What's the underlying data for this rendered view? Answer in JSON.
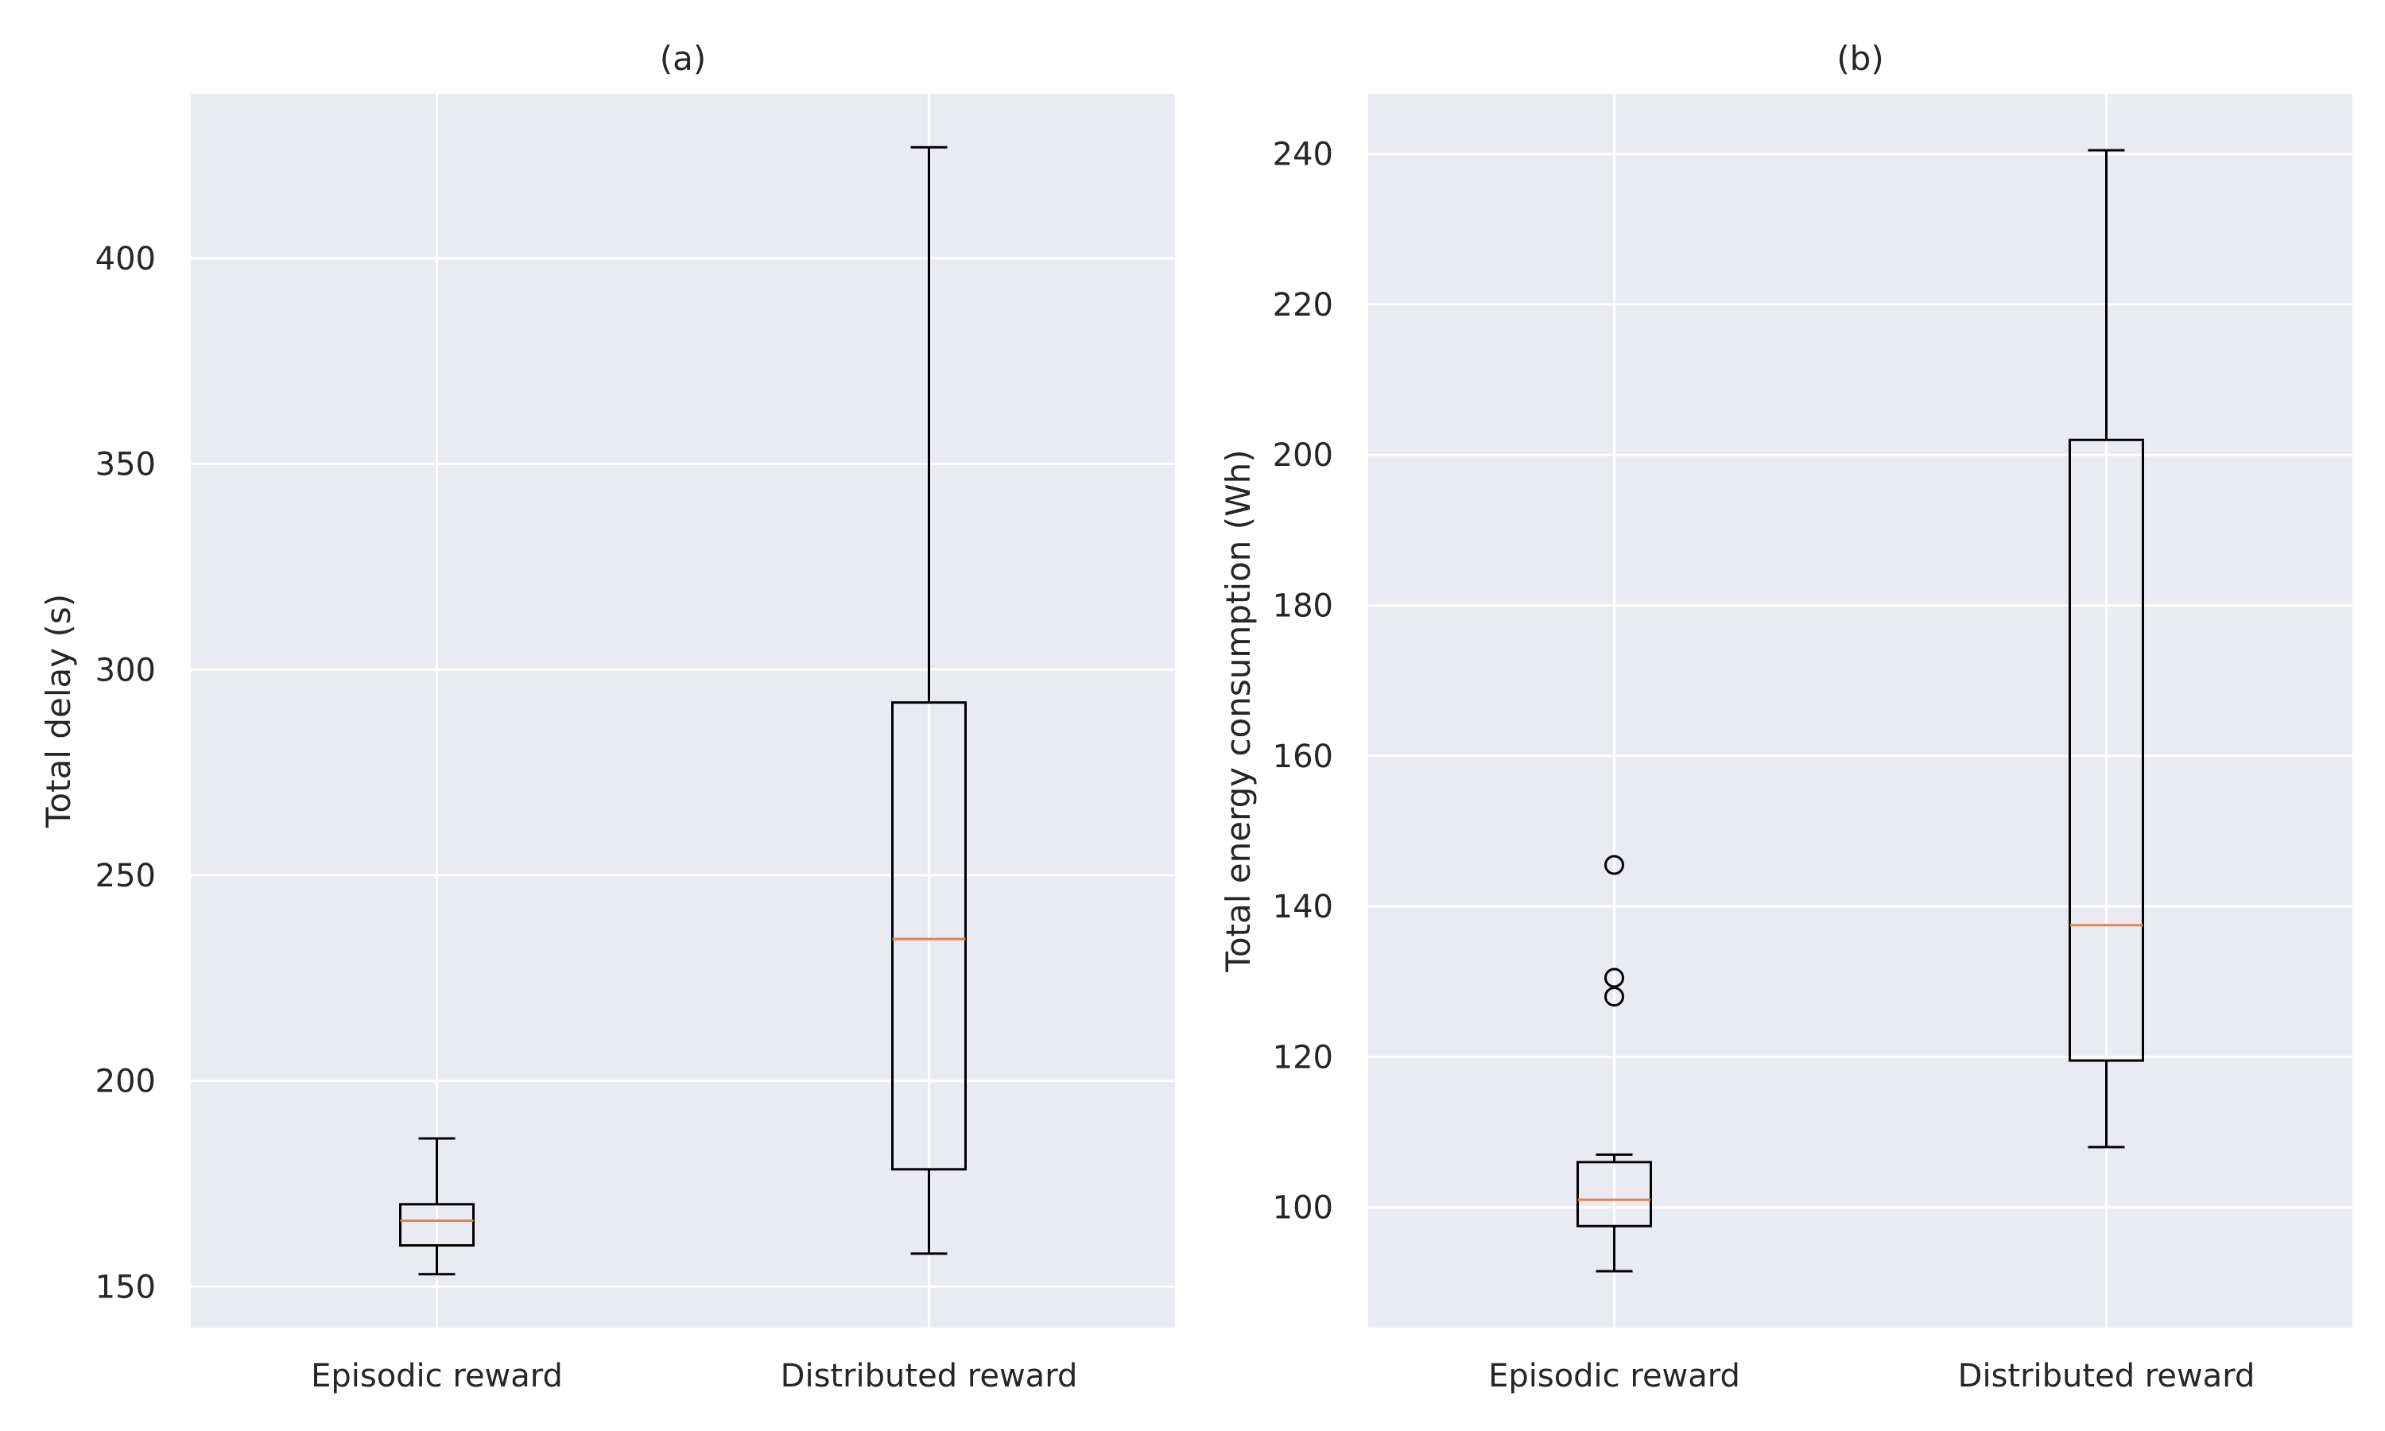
{
  "chart_data": [
    {
      "type": "box",
      "title": "(a)",
      "xlabel": "",
      "ylabel": "Total delay (s)",
      "categories": [
        "Episodic reward",
        "Distributed reward"
      ],
      "ylim": [
        140,
        440
      ],
      "yticks": [
        150,
        200,
        250,
        300,
        350,
        400
      ],
      "grid": true,
      "boxes": [
        {
          "name": "Episodic reward",
          "whisker_low": 153,
          "q1": 160,
          "median": 166,
          "q3": 170,
          "whisker_high": 186,
          "outliers": []
        },
        {
          "name": "Distributed reward",
          "whisker_low": 158,
          "q1": 178.5,
          "median": 234.5,
          "q3": 292,
          "whisker_high": 427,
          "outliers": []
        }
      ]
    },
    {
      "type": "box",
      "title": "(b)",
      "xlabel": "",
      "ylabel": "Total energy consumption (Wh)",
      "categories": [
        "Episodic reward",
        "Distributed reward"
      ],
      "ylim": [
        84,
        248
      ],
      "yticks": [
        100,
        120,
        140,
        160,
        180,
        200,
        220,
        240
      ],
      "grid": true,
      "boxes": [
        {
          "name": "Episodic reward",
          "whisker_low": 91.5,
          "q1": 97.5,
          "median": 101,
          "q3": 106,
          "whisker_high": 107,
          "outliers": [
            128,
            130.5,
            145.5
          ]
        },
        {
          "name": "Distributed reward",
          "whisker_low": 108,
          "q1": 119.5,
          "median": 137.5,
          "q3": 202,
          "whisker_high": 240.5,
          "outliers": []
        }
      ]
    }
  ],
  "colors": {
    "background": "#eaeaf2",
    "grid": "#ffffff",
    "box": "#000000",
    "median": "#dd8452",
    "text": "#262626"
  }
}
